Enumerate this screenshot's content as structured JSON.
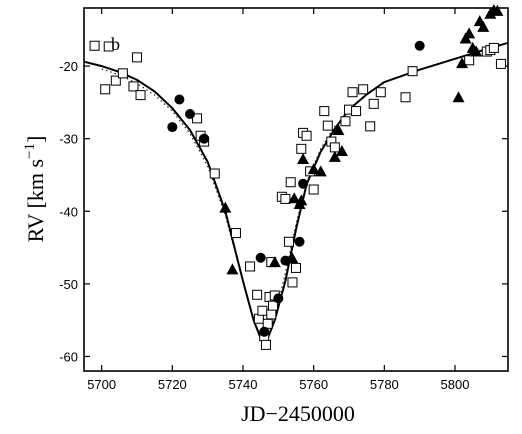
{
  "chart_data": {
    "type": "scatter",
    "panel_label": "b",
    "xlabel": "JD−2450000",
    "ylabel_main": "RV [km s",
    "ylabel_sup": "−1",
    "ylabel_close": "]",
    "xlim": [
      5695,
      5815
    ],
    "ylim": [
      -62,
      -12
    ],
    "xticks": [
      5700,
      5720,
      5740,
      5760,
      5780,
      5800
    ],
    "yticks": [
      -60,
      -50,
      -40,
      -30,
      -20
    ],
    "grid": false,
    "legend": "none",
    "series": [
      {
        "marker": "open-square",
        "points": [
          [
            5698,
            -17.2
          ],
          [
            5701,
            -23.2
          ],
          [
            5702,
            -17.3
          ],
          [
            5704,
            -22
          ],
          [
            5706,
            -21
          ],
          [
            5709,
            -22.8
          ],
          [
            5710,
            -18.8
          ],
          [
            5711,
            -24
          ],
          [
            5727,
            -27.2
          ],
          [
            5728,
            -29.6
          ],
          [
            5729,
            -30.4
          ],
          [
            5732,
            -34.8
          ],
          [
            5738,
            -43
          ],
          [
            5742,
            -47.6
          ],
          [
            5744,
            -51.5
          ],
          [
            5744.5,
            -54.8
          ],
          [
            5745.5,
            -53.7
          ],
          [
            5746,
            -57.2
          ],
          [
            5746.5,
            -58.4
          ],
          [
            5747,
            -55.5
          ],
          [
            5747.5,
            -51.8
          ],
          [
            5748,
            -54.2
          ],
          [
            5748.5,
            -53
          ],
          [
            5749,
            -51.6
          ],
          [
            5748,
            -47
          ],
          [
            5751,
            -38
          ],
          [
            5752,
            -38.3
          ],
          [
            5753,
            -44.2
          ],
          [
            5754,
            -49.8
          ],
          [
            5755,
            -47.8
          ],
          [
            5753.5,
            -36
          ],
          [
            5756.5,
            -31.4
          ],
          [
            5757,
            -29.2
          ],
          [
            5758,
            -29.6
          ],
          [
            5759,
            -34.5
          ],
          [
            5760,
            -37
          ],
          [
            5763,
            -26.2
          ],
          [
            5764,
            -28.2
          ],
          [
            5765,
            -30.4
          ],
          [
            5766,
            -31.2
          ],
          [
            5769,
            -27.6
          ],
          [
            5770,
            -26
          ],
          [
            5771,
            -23.6
          ],
          [
            5772,
            -26.2
          ],
          [
            5774,
            -23.2
          ],
          [
            5776,
            -28.3
          ],
          [
            5777,
            -25.2
          ],
          [
            5779,
            -23.6
          ],
          [
            5786,
            -24.3
          ],
          [
            5788,
            -20.7
          ],
          [
            5804,
            -19.2
          ],
          [
            5809,
            -18
          ],
          [
            5810,
            -17.8
          ],
          [
            5811,
            -17.5
          ],
          [
            5813,
            -19.7
          ]
        ]
      },
      {
        "marker": "filled-circle",
        "points": [
          [
            5720,
            -28.4
          ],
          [
            5722,
            -24.6
          ],
          [
            5725,
            -26.6
          ],
          [
            5729,
            -30
          ],
          [
            5745,
            -46.4
          ],
          [
            5746,
            -56.6
          ],
          [
            5750,
            -52
          ],
          [
            5752,
            -46.8
          ],
          [
            5756,
            -44.2
          ],
          [
            5757,
            -36.2
          ],
          [
            5790,
            -17.2
          ]
        ]
      },
      {
        "marker": "filled-triangle",
        "points": [
          [
            5735,
            -39.5
          ],
          [
            5737,
            -48
          ],
          [
            5749,
            -47
          ],
          [
            5754,
            -46.5
          ],
          [
            5754.5,
            -38.2
          ],
          [
            5756,
            -39
          ],
          [
            5756.5,
            -38.5
          ],
          [
            5757,
            -32.8
          ],
          [
            5760,
            -34.2
          ],
          [
            5762,
            -34.5
          ],
          [
            5766,
            -32.5
          ],
          [
            5767,
            -28.8
          ],
          [
            5768,
            -31.7
          ],
          [
            5801,
            -24.3
          ],
          [
            5802,
            -19.6
          ],
          [
            5803,
            -16.2
          ],
          [
            5804,
            -15.5
          ],
          [
            5805,
            -17.5
          ],
          [
            5806,
            -18
          ],
          [
            5807,
            -13.8
          ],
          [
            5808,
            -14.6
          ],
          [
            5810,
            -12.8
          ],
          [
            5811,
            -12.3
          ],
          [
            5812,
            -12.4
          ]
        ]
      }
    ],
    "fit_curve": [
      [
        5695,
        -19.4
      ],
      [
        5700,
        -20
      ],
      [
        5705,
        -20.8
      ],
      [
        5710,
        -21.9
      ],
      [
        5715,
        -23.5
      ],
      [
        5720,
        -25.8
      ],
      [
        5725,
        -28.8
      ],
      [
        5730,
        -33.2
      ],
      [
        5735,
        -40
      ],
      [
        5740,
        -49.6
      ],
      [
        5743,
        -55
      ],
      [
        5745,
        -57.5
      ],
      [
        5746,
        -58
      ],
      [
        5747,
        -57.5
      ],
      [
        5749,
        -55
      ],
      [
        5752,
        -49.6
      ],
      [
        5755,
        -42.5
      ],
      [
        5758,
        -36.3
      ],
      [
        5762,
        -31.8
      ],
      [
        5766,
        -28.6
      ],
      [
        5770,
        -26
      ],
      [
        5775,
        -23.9
      ],
      [
        5780,
        -22.2
      ],
      [
        5790,
        -20.5
      ],
      [
        5800,
        -19
      ],
      [
        5808,
        -17.8
      ],
      [
        5815,
        -16.8
      ]
    ],
    "dotted_curve": [
      [
        5700,
        -20.4
      ],
      [
        5705,
        -21.2
      ],
      [
        5710,
        -22.4
      ],
      [
        5715,
        -24
      ],
      [
        5720,
        -26.2
      ],
      [
        5725,
        -29.3
      ],
      [
        5730,
        -33.8
      ],
      [
        5735,
        -40.5
      ],
      [
        5740,
        -49.8
      ],
      [
        5743,
        -55.2
      ],
      [
        5745,
        -57.5
      ],
      [
        5746,
        -58
      ],
      [
        5747,
        -57.3
      ],
      [
        5749,
        -54.6
      ],
      [
        5752,
        -48.5
      ],
      [
        5755,
        -41.8
      ],
      [
        5758,
        -36
      ],
      [
        5762,
        -31.4
      ],
      [
        5766,
        -28.2
      ]
    ]
  }
}
